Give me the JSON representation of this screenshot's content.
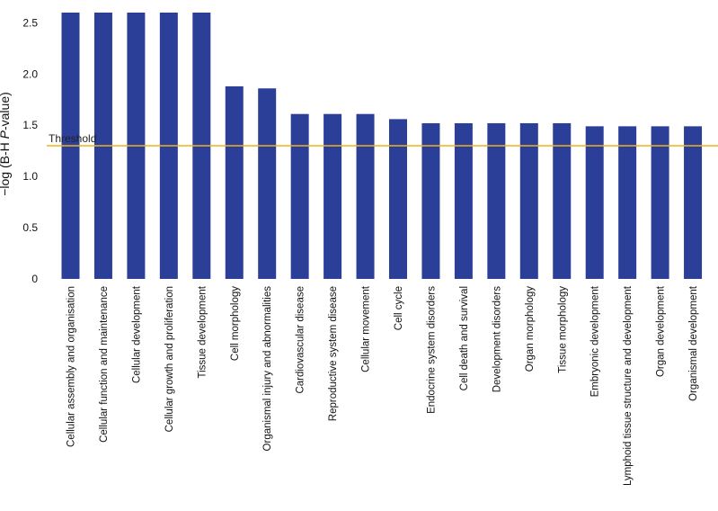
{
  "chart_data": {
    "type": "bar",
    "ylabel_prefix": "−log (B-H ",
    "ylabel_italic": "P",
    "ylabel_suffix": "-value)",
    "ylim": [
      0,
      2.6
    ],
    "yticks": [
      "0",
      "0.5",
      "1.0",
      "1.5",
      "2.0",
      "2.5"
    ],
    "ytick_values": [
      0,
      0.5,
      1.0,
      1.5,
      2.0,
      2.5
    ],
    "threshold": {
      "label": "Threshold",
      "value": 1.3,
      "color": "#f2b21b"
    },
    "bar_color": "#2b3f99",
    "categories": [
      "Cellular assembly and organisation",
      "Cellular function and maintenance",
      "Cellular development",
      "Cellular growth and proliferation",
      "Tissue development",
      "Cell morphology",
      "Organismal injury and abnormalities",
      "Cardiovascular disease",
      "Reproductive system disease",
      "Cellular movement",
      "Cell cycle",
      "Endocrine system disorders",
      "Cell death and survival",
      "Development disorders",
      "Organ morphology",
      "Tissue morphology",
      "Embryonic development",
      "Lymphoid tissue structure and  development",
      "Organ development",
      "Organismal development"
    ],
    "values": [
      2.6,
      2.6,
      2.6,
      2.6,
      2.6,
      1.88,
      1.86,
      1.61,
      1.61,
      1.61,
      1.56,
      1.52,
      1.52,
      1.52,
      1.52,
      1.52,
      1.49,
      1.49,
      1.49,
      1.49
    ],
    "grid": false,
    "legend": "none"
  }
}
